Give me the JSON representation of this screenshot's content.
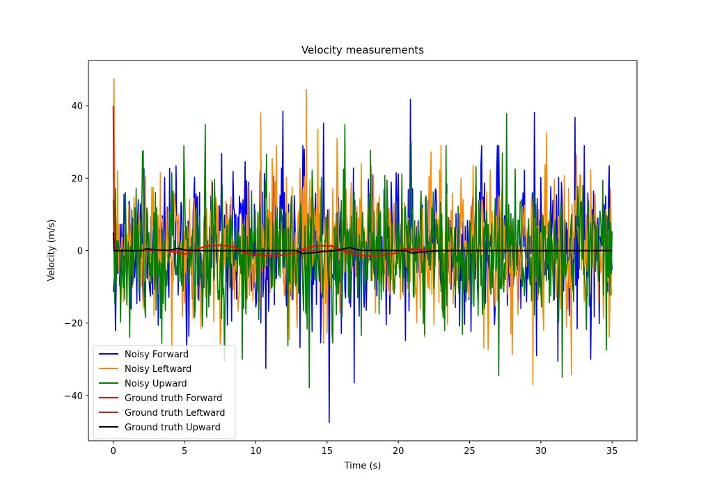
{
  "chart_data": {
    "type": "line",
    "title": "Velocity measurements",
    "xlabel": "Time (s)",
    "ylabel": "Velocity (m/s)",
    "xlim": [
      -1.75,
      36.75
    ],
    "ylim": [
      -52.5,
      52.5
    ],
    "xticks": [
      0,
      5,
      10,
      15,
      20,
      25,
      30,
      35
    ],
    "yticks": [
      -40,
      -20,
      0,
      20,
      40
    ],
    "grid": false,
    "legend_position": "lower-left",
    "series": [
      {
        "name": "Noisy Forward",
        "color": "#0000ff",
        "style": "noise",
        "duration": 35,
        "samples": 700,
        "stddev": 10,
        "seed": 11,
        "peaks": [
          [
            15.15,
            -47.5
          ],
          [
            20.85,
            41.8
          ],
          [
            11.9,
            38.5
          ],
          [
            29.55,
            38.2
          ],
          [
            32.4,
            36.8
          ],
          [
            16.9,
            -36.5
          ],
          [
            14.75,
            35.2
          ],
          [
            10.7,
            -32.5
          ],
          [
            31.2,
            -30.5
          ],
          [
            33.5,
            -30
          ]
        ]
      },
      {
        "name": "Noisy Leftward",
        "color": "#ff8c00",
        "style": "noise",
        "duration": 35,
        "samples": 700,
        "stddev": 10,
        "seed": 23,
        "peaks": [
          [
            0.05,
            47.5
          ],
          [
            13.55,
            44.5
          ],
          [
            10.35,
            38
          ],
          [
            29.45,
            -37
          ],
          [
            14.35,
            33.5
          ],
          [
            32.15,
            -34.2
          ],
          [
            15.7,
            31
          ],
          [
            4.1,
            -28
          ],
          [
            26.0,
            -27
          ],
          [
            30.4,
            32.5
          ]
        ]
      },
      {
        "name": "Noisy Upward",
        "color": "#008000",
        "style": "noise",
        "duration": 35,
        "samples": 700,
        "stddev": 9.5,
        "seed": 37,
        "peaks": [
          [
            13.75,
            -37.8
          ],
          [
            27.6,
            37.8
          ],
          [
            7.8,
            -30.5
          ],
          [
            9.05,
            -30
          ],
          [
            27.05,
            -34.5
          ],
          [
            31.5,
            -35
          ],
          [
            2.05,
            27.5
          ],
          [
            6.45,
            34.9
          ],
          [
            16.25,
            34.8
          ],
          [
            20.9,
            30
          ]
        ]
      },
      {
        "name": "Ground truth Forward",
        "color": "#ff0000",
        "style": "truth",
        "points": [
          [
            0,
            40
          ],
          [
            0.04,
            15
          ],
          [
            0.1,
            2
          ],
          [
            0.2,
            0
          ],
          [
            2.3,
            0
          ],
          [
            3.5,
            0.2
          ],
          [
            4.2,
            -0.4
          ],
          [
            5.0,
            -1.0
          ],
          [
            5.8,
            0.2
          ],
          [
            6.5,
            1.3
          ],
          [
            7.5,
            1.5
          ],
          [
            8.5,
            1.0
          ],
          [
            9.2,
            -0.6
          ],
          [
            10.5,
            -1.4
          ],
          [
            11.5,
            -1.4
          ],
          [
            12.8,
            -0.7
          ],
          [
            13.4,
            0.6
          ],
          [
            14.3,
            1.4
          ],
          [
            15.5,
            1.2
          ],
          [
            16.3,
            -0.4
          ],
          [
            17.5,
            -1.4
          ],
          [
            18.5,
            -1.5
          ],
          [
            19.7,
            -0.8
          ],
          [
            20.4,
            0.5
          ],
          [
            21.5,
            0.4
          ],
          [
            22.5,
            0
          ]
        ]
      },
      {
        "name": "Ground truth Leftward",
        "color": "#a52a2a",
        "style": "truth",
        "points": [
          [
            0,
            14
          ],
          [
            0.05,
            3
          ],
          [
            0.15,
            0
          ],
          [
            35,
            0
          ]
        ]
      },
      {
        "name": "Ground truth Upward",
        "color": "#000000",
        "style": "truth",
        "points": [
          [
            0,
            5
          ],
          [
            0.05,
            0
          ],
          [
            2.0,
            0
          ],
          [
            2.3,
            0.5
          ],
          [
            3.0,
            0.2
          ],
          [
            3.9,
            0.1
          ],
          [
            4.5,
            0.6
          ],
          [
            5.2,
            0.1
          ],
          [
            6.0,
            0
          ],
          [
            12.9,
            0
          ],
          [
            13.3,
            -0.8
          ],
          [
            14.0,
            -0.6
          ],
          [
            14.7,
            -0.3
          ],
          [
            15.8,
            0.1
          ],
          [
            16.6,
            0.9
          ],
          [
            17.2,
            0.1
          ],
          [
            20.5,
            0
          ],
          [
            21.0,
            -0.7
          ],
          [
            21.6,
            -0.4
          ],
          [
            22.2,
            -0.2
          ],
          [
            23.0,
            0
          ],
          [
            35,
            0
          ]
        ]
      }
    ]
  }
}
